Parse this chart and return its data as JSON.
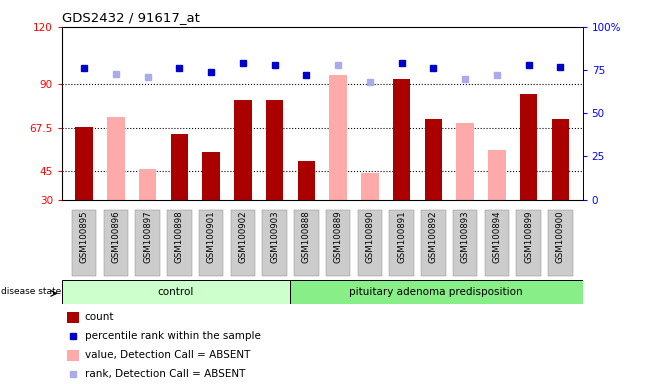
{
  "title": "GDS2432 / 91617_at",
  "samples": [
    "GSM100895",
    "GSM100896",
    "GSM100897",
    "GSM100898",
    "GSM100901",
    "GSM100902",
    "GSM100903",
    "GSM100888",
    "GSM100889",
    "GSM100890",
    "GSM100891",
    "GSM100892",
    "GSM100893",
    "GSM100894",
    "GSM100899",
    "GSM100900"
  ],
  "count_values": [
    68,
    null,
    null,
    64,
    55,
    82,
    82,
    50,
    null,
    null,
    93,
    72,
    null,
    null,
    85,
    72
  ],
  "absent_values": [
    null,
    73,
    46,
    null,
    null,
    null,
    null,
    null,
    95,
    44,
    null,
    null,
    70,
    56,
    null,
    null
  ],
  "rank_values": [
    76,
    null,
    null,
    76,
    74,
    79,
    78,
    72,
    null,
    null,
    79,
    76,
    null,
    null,
    78,
    77
  ],
  "absent_rank_values": [
    null,
    73,
    71,
    null,
    null,
    null,
    null,
    null,
    78,
    68,
    null,
    null,
    70,
    72,
    null,
    null
  ],
  "ylim_left": [
    30,
    120
  ],
  "ylim_right": [
    0,
    100
  ],
  "yticks_left": [
    30,
    45,
    67.5,
    90,
    120
  ],
  "ytick_labels_left": [
    "30",
    "45",
    "67.5",
    "90",
    "120"
  ],
  "yticks_right": [
    0,
    25,
    50,
    75,
    100
  ],
  "ytick_labels_right": [
    "0",
    "25",
    "50",
    "75",
    "100%"
  ],
  "hlines": [
    45,
    67.5,
    90
  ],
  "bar_color": "#aa0000",
  "absent_bar_color": "#ffaaaa",
  "rank_marker_color": "#0000cc",
  "absent_rank_marker_color": "#aaaaee",
  "ctrl_n": 7,
  "pitu_n": 9,
  "legend_items": [
    {
      "label": "count",
      "color": "#aa0000",
      "type": "bar"
    },
    {
      "label": "percentile rank within the sample",
      "color": "#0000cc",
      "type": "marker"
    },
    {
      "label": "value, Detection Call = ABSENT",
      "color": "#ffaaaa",
      "type": "bar"
    },
    {
      "label": "rank, Detection Call = ABSENT",
      "color": "#aaaaee",
      "type": "marker"
    }
  ]
}
